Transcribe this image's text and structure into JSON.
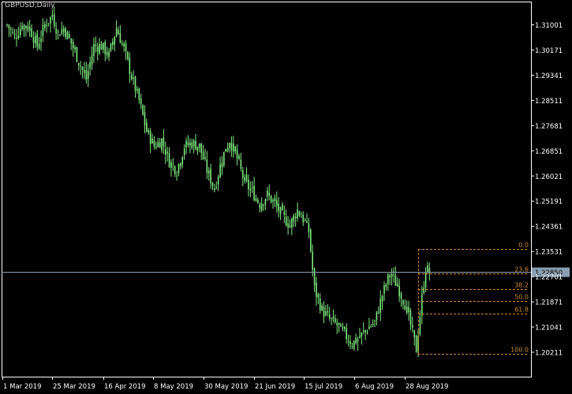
{
  "window": {
    "symbol_title": "GBPUSD,Daily"
  },
  "colors": {
    "background": "#000000",
    "frame": "#ffffff",
    "candle": "#7ee87e",
    "price_line": "#8a9fb2",
    "price_tag_bg": "#8a9fb2",
    "price_tag_text": "#000000",
    "fibo": "#d08a2c",
    "axis_text": "#ffffff"
  },
  "price_axis": {
    "labels": [
      "1.31001",
      "1.30171",
      "1.29341",
      "1.28511",
      "1.27681",
      "1.26851",
      "1.26021",
      "1.25191",
      "1.24361",
      "1.23531",
      "1.22701",
      "1.21871",
      "1.21041",
      "1.20211"
    ],
    "current_price_label": "1.22850"
  },
  "time_axis": {
    "labels": [
      "1 Mar 2019",
      "25 Mar 2019",
      "16 Apr 2019",
      "8 May 2019",
      "30 May 2019",
      "21 Jun 2019",
      "15 Jul 2019",
      "6 Aug 2019",
      "28 Aug 2019"
    ]
  },
  "fibonacci": {
    "levels": [
      {
        "label": "0.0",
        "price": 1.2362
      },
      {
        "label": "23.6",
        "price": 1.228
      },
      {
        "label": "38.2",
        "price": 1.223
      },
      {
        "label": "50.0",
        "price": 1.2189
      },
      {
        "label": "61.8",
        "price": 1.2149
      },
      {
        "label": "100.0",
        "price": 1.2016
      }
    ]
  },
  "chart_data": {
    "type": "candlestick",
    "symbol": "GBPUSD",
    "timeframe": "Daily",
    "current_price": 1.2285,
    "ylim": [
      1.198,
      1.315
    ],
    "xlabels": [
      "1 Mar 2019",
      "25 Mar 2019",
      "16 Apr 2019",
      "8 May 2019",
      "30 May 2019",
      "21 Jun 2019",
      "15 Jul 2019",
      "6 Aug 2019",
      "28 Aug 2019"
    ],
    "close_path": [
      [
        0,
        1.31
      ],
      [
        4,
        1.306
      ],
      [
        8,
        1.31
      ],
      [
        12,
        1.309
      ],
      [
        16,
        1.303
      ],
      [
        20,
        1.31
      ],
      [
        24,
        1.313
      ],
      [
        27,
        1.307
      ],
      [
        30,
        1.309
      ],
      [
        34,
        1.304
      ],
      [
        38,
        1.298
      ],
      [
        42,
        1.292
      ],
      [
        46,
        1.303
      ],
      [
        50,
        1.303
      ],
      [
        54,
        1.3
      ],
      [
        58,
        1.309
      ],
      [
        62,
        1.302
      ],
      [
        66,
        1.293
      ],
      [
        70,
        1.285
      ],
      [
        74,
        1.275
      ],
      [
        78,
        1.27
      ],
      [
        82,
        1.272
      ],
      [
        86,
        1.265
      ],
      [
        90,
        1.262
      ],
      [
        94,
        1.27
      ],
      [
        98,
        1.271
      ],
      [
        102,
        1.27
      ],
      [
        106,
        1.262
      ],
      [
        110,
        1.256
      ],
      [
        114,
        1.266
      ],
      [
        118,
        1.272
      ],
      [
        122,
        1.266
      ],
      [
        126,
        1.258
      ],
      [
        130,
        1.255
      ],
      [
        134,
        1.251
      ],
      [
        138,
        1.254
      ],
      [
        142,
        1.251
      ],
      [
        146,
        1.247
      ],
      [
        150,
        1.244
      ],
      [
        154,
        1.249
      ],
      [
        158,
        1.245
      ],
      [
        160,
        1.242
      ],
      [
        163,
        1.223
      ],
      [
        167,
        1.216
      ],
      [
        171,
        1.213
      ],
      [
        175,
        1.211
      ],
      [
        179,
        1.208
      ],
      [
        183,
        1.205
      ],
      [
        187,
        1.207
      ],
      [
        191,
        1.21
      ],
      [
        195,
        1.212
      ],
      [
        199,
        1.221
      ],
      [
        203,
        1.228
      ],
      [
        207,
        1.224
      ],
      [
        211,
        1.218
      ],
      [
        214,
        1.211
      ],
      [
        217,
        1.203
      ],
      [
        220,
        1.22
      ],
      [
        222,
        1.23
      ],
      [
        224,
        1.2285
      ]
    ]
  }
}
